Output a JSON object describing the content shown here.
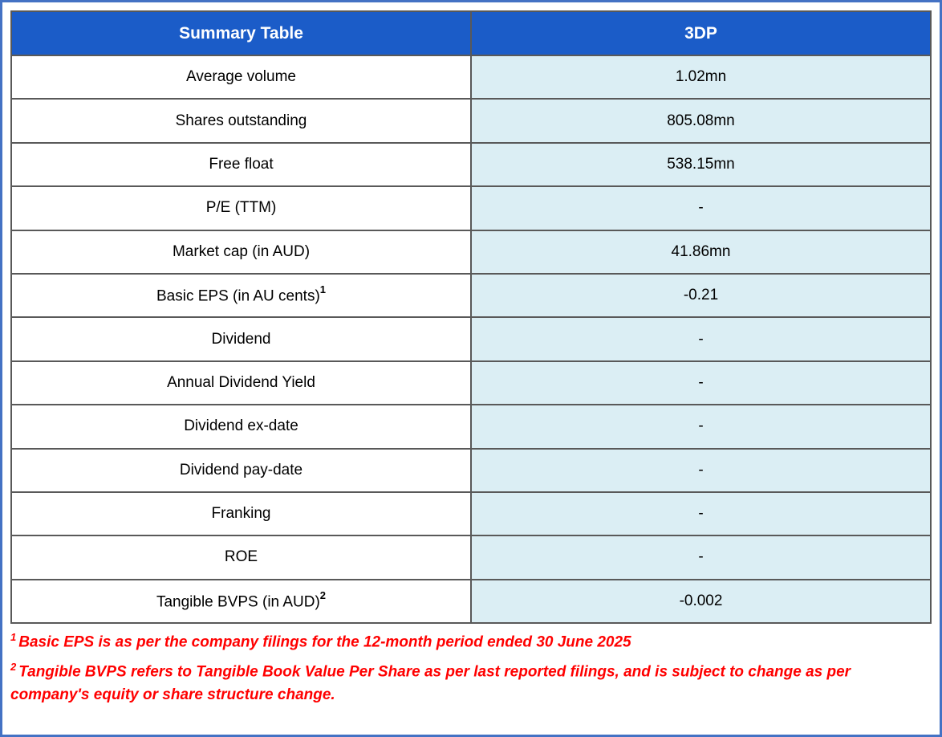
{
  "frame": {
    "outer_border_color": "#4472C4"
  },
  "colors": {
    "header_bg": "#1B5CC8",
    "header_text": "#FFFFFF",
    "value_column_bg": "#DBEEF4",
    "grid_border": "#595959",
    "footnote_text": "#FF0000",
    "cell_text": "#000000"
  },
  "table": {
    "header": {
      "label_col": "Summary Table",
      "value_col": "3DP"
    },
    "rows": [
      {
        "label": "Average volume",
        "sup": "",
        "value": "1.02mn"
      },
      {
        "label": "Shares outstanding",
        "sup": "",
        "value": "805.08mn"
      },
      {
        "label": "Free float",
        "sup": "",
        "value": "538.15mn"
      },
      {
        "label": "P/E (TTM)",
        "sup": "",
        "value": "-"
      },
      {
        "label": "Market cap (in AUD)",
        "sup": "",
        "value": "41.86mn"
      },
      {
        "label": "Basic EPS (in AU cents)",
        "sup": "1",
        "value": "-0.21"
      },
      {
        "label": "Dividend",
        "sup": "",
        "value": "-"
      },
      {
        "label": "Annual Dividend Yield",
        "sup": "",
        "value": "-"
      },
      {
        "label": "Dividend ex-date",
        "sup": "",
        "value": "-"
      },
      {
        "label": "Dividend pay-date",
        "sup": "",
        "value": "-"
      },
      {
        "label": "Franking",
        "sup": "",
        "value": "-"
      },
      {
        "label": "ROE",
        "sup": "",
        "value": "-"
      },
      {
        "label": "Tangible BVPS (in AUD)",
        "sup": "2",
        "value": "-0.002"
      }
    ]
  },
  "footnotes": [
    {
      "marker": "1",
      "text": "Basic EPS is as per the company filings for the 12-month period ended 30 June 2025"
    },
    {
      "marker": "2",
      "text": "Tangible BVPS refers to Tangible Book Value Per Share as per last reported filings, and is subject to change as per company's equity or share structure change."
    }
  ]
}
